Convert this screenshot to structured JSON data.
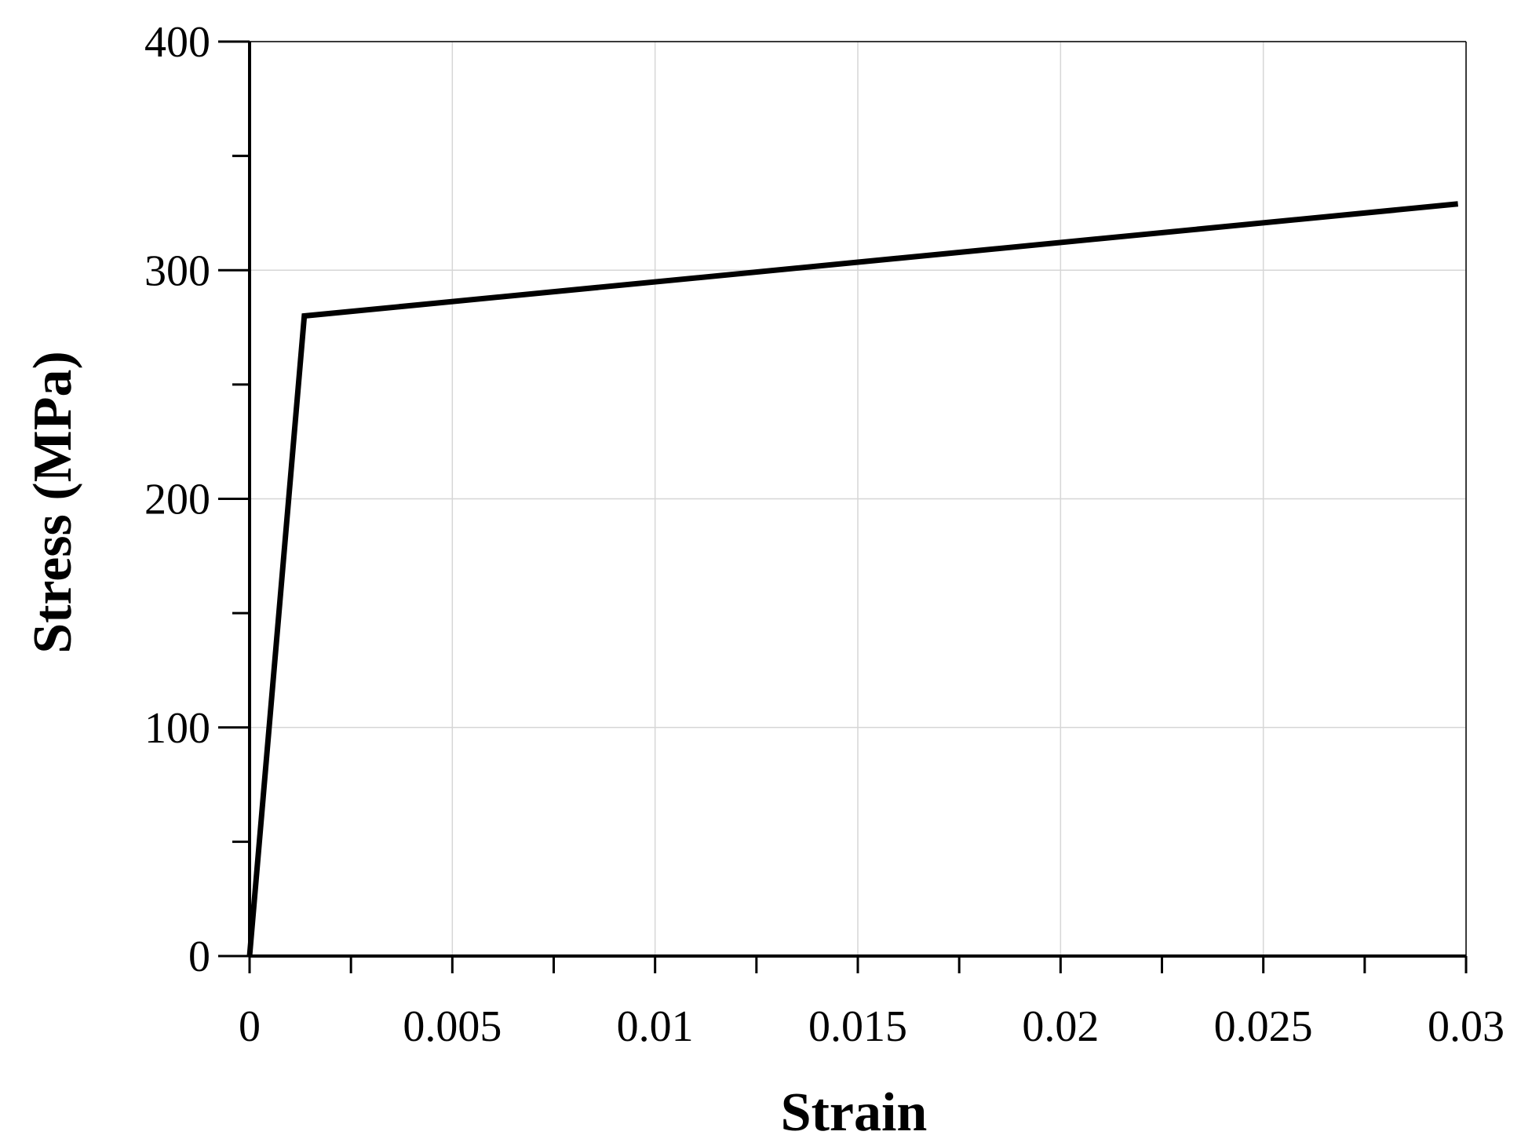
{
  "chart_data": {
    "type": "line",
    "title": "",
    "xlabel": "Strain",
    "ylabel": "Stress (MPa)",
    "xlim": [
      0,
      0.03
    ],
    "ylim": [
      0,
      400
    ],
    "x_ticks": [
      0,
      0.005,
      0.01,
      0.015,
      0.02,
      0.025,
      0.03
    ],
    "x_tick_labels": [
      "0",
      "0.005",
      "0.01",
      "0.015",
      "0.02",
      "0.025",
      "0.03"
    ],
    "x_minor_ticks": [
      0.0025,
      0.0075,
      0.0125,
      0.0175,
      0.0225,
      0.0275
    ],
    "y_ticks": [
      0,
      100,
      200,
      300,
      400
    ],
    "y_tick_labels": [
      "0",
      "100",
      "200",
      "300",
      "400"
    ],
    "y_minor_ticks": [
      50,
      150,
      250,
      350
    ],
    "grid": true,
    "legend": "none",
    "series": [
      {
        "color": "#000000",
        "x": [
          0,
          0.00135,
          0.0298
        ],
        "y": [
          0,
          280,
          329
        ]
      }
    ]
  }
}
